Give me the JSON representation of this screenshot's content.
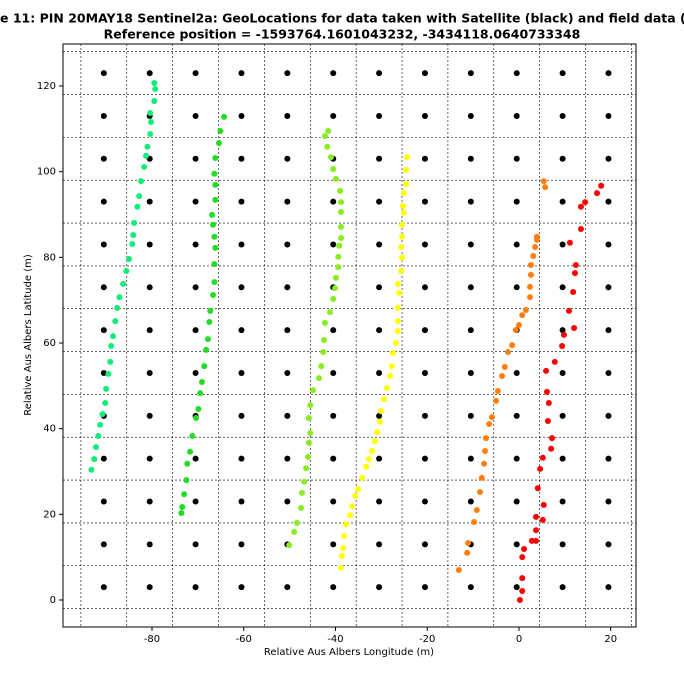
{
  "chart_data": {
    "type": "scatter",
    "title": "e 11: PIN 20MAY18  Sentinel2a: GeoLocations for data taken with Satellite (black) and field data (colo",
    "subtitle": "Reference position = -1593764.1601043232, -3434118.0640733348",
    "xlabel": "Relative Aus Albers Longitude (m)",
    "ylabel": "Relative Aus Albers Latitude (m)",
    "xlim": [
      -99.4,
      25.5
    ],
    "ylim": [
      -6.3,
      129.8
    ],
    "xticks": [
      -80,
      -60,
      -40,
      -20,
      0,
      20
    ],
    "yticks": [
      0,
      20,
      40,
      60,
      80,
      100,
      120
    ],
    "xgrid": [
      -95.5,
      -85.5,
      -75.5,
      -65.5,
      -55.5,
      -45.5,
      -35.5,
      -25.5,
      -15.5,
      -5.5,
      4.5,
      14.5,
      24.5
    ],
    "ygrid": [
      -2,
      8,
      18,
      28,
      38,
      48,
      58,
      68,
      78,
      88,
      98,
      108,
      118,
      128
    ],
    "grid": true,
    "series": [
      {
        "color": "#000000",
        "x": [
          -90.5,
          -80.5,
          -70.5,
          -60.5,
          -50.5,
          -40.5,
          -30.5,
          -20.5,
          -10.5,
          -0.5,
          9.5,
          19.5,
          -90.5,
          -80.5,
          -70.5,
          -60.5,
          -50.5,
          -40.5,
          -30.5,
          -20.5,
          -10.5,
          -0.5,
          9.5,
          19.5,
          -90.5,
          -80.5,
          -70.5,
          -60.5,
          -50.5,
          -40.5,
          -30.5,
          -20.5,
          -10.5,
          -0.5,
          9.5,
          19.5,
          -90.5,
          -80.5,
          -70.5,
          -60.5,
          -50.5,
          -40.5,
          -30.5,
          -20.5,
          -10.5,
          -0.5,
          9.5,
          19.5,
          -90.5,
          -80.5,
          -70.5,
          -60.5,
          -50.5,
          -40.5,
          -30.5,
          -20.5,
          -10.5,
          -0.5,
          9.5,
          19.5,
          -90.5,
          -80.5,
          -70.5,
          -60.5,
          -50.5,
          -40.5,
          -30.5,
          -20.5,
          -10.5,
          -0.5,
          9.5,
          19.5,
          -90.5,
          -80.5,
          -70.5,
          -60.5,
          -50.5,
          -40.5,
          -30.5,
          -20.5,
          -10.5,
          -0.5,
          9.5,
          19.5,
          -90.5,
          -80.5,
          -70.5,
          -60.5,
          -50.5,
          -40.5,
          -30.5,
          -20.5,
          -10.5,
          -0.5,
          9.5,
          19.5,
          -90.5,
          -80.5,
          -70.5,
          -60.5,
          -50.5,
          -40.5,
          -30.5,
          -20.5,
          -10.5,
          -0.5,
          9.5,
          19.5,
          -90.5,
          -80.5,
          -70.5,
          -60.5,
          -50.5,
          -40.5,
          -30.5,
          -20.5,
          -10.5,
          -0.5,
          9.5,
          19.5,
          -90.5,
          -80.5,
          -70.5,
          -60.5,
          -50.5,
          -40.5,
          -30.5,
          -20.5,
          -10.5,
          -0.5,
          9.5,
          19.5,
          -90.5,
          -80.5,
          -70.5,
          -60.5,
          -50.5,
          -40.5,
          -30.5,
          -20.5,
          -10.5,
          -0.5,
          9.5,
          19.5,
          -90.5,
          -80.5,
          -70.5,
          -60.5,
          -50.5,
          -40.5,
          -30.5,
          -20.5,
          -10.5,
          -0.5,
          9.5,
          19.5
        ],
        "y": [
          3,
          3,
          3,
          3,
          3,
          3,
          3,
          3,
          3,
          3,
          3,
          3,
          13,
          13,
          13,
          13,
          13,
          13,
          13,
          13,
          13,
          13,
          13,
          13,
          23,
          23,
          23,
          23,
          23,
          23,
          23,
          23,
          23,
          23,
          23,
          23,
          33,
          33,
          33,
          33,
          33,
          33,
          33,
          33,
          33,
          33,
          33,
          33,
          43,
          43,
          43,
          43,
          43,
          43,
          43,
          43,
          43,
          43,
          43,
          43,
          53,
          53,
          53,
          53,
          53,
          53,
          53,
          53,
          53,
          53,
          53,
          53,
          63,
          63,
          63,
          63,
          63,
          63,
          63,
          63,
          63,
          63,
          63,
          63,
          73,
          73,
          73,
          73,
          73,
          73,
          73,
          73,
          73,
          73,
          73,
          73,
          83,
          83,
          83,
          83,
          83,
          83,
          83,
          83,
          83,
          83,
          83,
          83,
          93,
          93,
          93,
          93,
          93,
          93,
          93,
          93,
          93,
          93,
          93,
          93,
          103,
          103,
          103,
          103,
          103,
          103,
          103,
          103,
          103,
          103,
          103,
          103,
          113,
          113,
          113,
          113,
          113,
          113,
          113,
          113,
          113,
          113,
          113,
          113,
          123,
          123,
          123,
          123,
          123,
          123,
          123,
          123,
          123,
          123,
          123,
          123
        ]
      },
      {
        "color": "#11ee77",
        "x": [
          -93.2,
          -92.6,
          -92.2,
          -91.7,
          -91.3,
          -90.8,
          -90.2,
          -90.0,
          -89.5,
          -89.1,
          -88.9,
          -88.5,
          -88.0,
          -87.6,
          -87.1,
          -86.3,
          -85.6,
          -85.0,
          -84.3,
          -84.1,
          -83.9,
          -83.2,
          -82.8,
          -82.4,
          -81.7,
          -81.3,
          -81.0,
          -80.4,
          -80.2,
          -80.4,
          -79.5,
          -79.3,
          -79.5
        ],
        "y": [
          30.4,
          32.9,
          35.7,
          38.3,
          40.9,
          43.4,
          46.0,
          49.3,
          52.8,
          55.6,
          59.3,
          61.6,
          65.1,
          68.2,
          70.7,
          73.8,
          76.8,
          79.6,
          83.1,
          85.2,
          88.0,
          91.8,
          94.3,
          97.8,
          101.1,
          103.7,
          105.8,
          108.8,
          111.6,
          113.7,
          116.5,
          119.3,
          120.7
        ]
      },
      {
        "color": "#22dd22",
        "x": [
          -73.6,
          -73.4,
          -73.0,
          -72.5,
          -72.3,
          -71.7,
          -71.2,
          -70.4,
          -69.9,
          -69.5,
          -69.1,
          -68.6,
          -68.2,
          -67.8,
          -67.5,
          -67.3,
          -66.7,
          -66.4,
          -66.4,
          -66.2,
          -66.4,
          -66.7,
          -66.9,
          -66.2,
          -66.2,
          -66.4,
          -66.2,
          -65.4,
          -65.1,
          -64.3
        ],
        "y": [
          20.3,
          21.7,
          24.7,
          28.0,
          31.8,
          34.6,
          38.3,
          42.5,
          44.6,
          48.3,
          50.9,
          54.6,
          58.4,
          60.9,
          64.9,
          67.5,
          71.2,
          74.2,
          78.4,
          82.2,
          84.8,
          87.6,
          89.9,
          93.4,
          96.9,
          99.5,
          103.2,
          106.7,
          109.5,
          112.8
        ]
      },
      {
        "color": "#88ee22",
        "x": [
          -50.1,
          -49.0,
          -48.4,
          -47.5,
          -47.3,
          -46.8,
          -46.4,
          -46.0,
          -45.8,
          -45.5,
          -45.8,
          -45.5,
          -44.9,
          -43.6,
          -43.1,
          -42.7,
          -42.5,
          -42.3,
          -41.2,
          -40.5,
          -40.1,
          -39.9,
          -39.4,
          -39.4,
          -39.2,
          -38.8,
          -38.8,
          -38.8,
          -38.8,
          -39.0,
          -39.9,
          -40.5,
          -41.0,
          -41.8,
          -42.3,
          -41.6
        ],
        "y": [
          12.8,
          15.9,
          18.0,
          21.5,
          25.0,
          27.6,
          30.8,
          33.4,
          36.7,
          39.0,
          42.5,
          45.5,
          49.0,
          51.8,
          54.6,
          57.9,
          60.7,
          64.7,
          67.2,
          70.3,
          72.8,
          75.2,
          77.7,
          80.1,
          82.7,
          84.5,
          87.1,
          90.6,
          92.9,
          95.5,
          98.3,
          100.6,
          103.4,
          105.8,
          108.3,
          109.5
        ]
      },
      {
        "color": "#ffff00",
        "x": [
          -38.8,
          -38.6,
          -38.3,
          -38.1,
          -37.7,
          -36.8,
          -36.4,
          -35.7,
          -35.1,
          -34.2,
          -33.3,
          -32.7,
          -32.0,
          -31.4,
          -30.9,
          -30.3,
          -30.1,
          -29.4,
          -28.8,
          -28.1,
          -27.7,
          -27.5,
          -26.8,
          -26.4,
          -26.4,
          -26.4,
          -26.1,
          -26.4,
          -25.7,
          -25.5,
          -25.7,
          -25.5,
          -25.5,
          -25.1,
          -25.3,
          -25.1,
          -24.6,
          -24.6,
          -24.4
        ],
        "y": [
          7.5,
          10.3,
          12.1,
          14.9,
          17.7,
          19.8,
          21.9,
          24.3,
          25.9,
          28.5,
          31.1,
          32.9,
          34.8,
          37.1,
          39.2,
          41.6,
          44.1,
          46.9,
          49.5,
          52.3,
          54.6,
          57.7,
          60.0,
          62.8,
          65.1,
          68.2,
          71.7,
          73.8,
          76.8,
          79.9,
          82.4,
          84.8,
          87.6,
          90.4,
          92.0,
          95.0,
          97.1,
          100.4,
          103.4
        ]
      },
      {
        "color": "#ff7f0e",
        "x": [
          -13.1,
          -11.3,
          -11.1,
          -9.8,
          -9.2,
          -8.5,
          -8.1,
          -7.6,
          -7.4,
          -7.2,
          -6.5,
          -5.9,
          -5.0,
          -4.6,
          -3.7,
          -3.1,
          -2.4,
          -1.5,
          -0.7,
          0.0,
          0.7,
          1.5,
          2.4,
          2.4,
          2.6,
          2.6,
          3.1,
          3.5,
          3.9,
          3.9,
          5.7,
          5.4
        ],
        "y": [
          7.0,
          11.0,
          13.3,
          18.2,
          21.0,
          25.2,
          28.5,
          31.8,
          34.8,
          37.8,
          41.1,
          42.7,
          46.5,
          48.8,
          52.3,
          54.4,
          57.9,
          59.5,
          63.0,
          64.2,
          66.5,
          67.7,
          70.7,
          73.1,
          75.9,
          78.2,
          80.3,
          82.4,
          84.1,
          84.8,
          96.4,
          97.8
        ]
      },
      {
        "color": "#ff0000",
        "x": [
          0.2,
          0.7,
          0.7,
          0.7,
          1.1,
          2.8,
          3.7,
          3.7,
          3.7,
          5.2,
          5.4,
          4.1,
          4.6,
          5.2,
          7.0,
          7.2,
          6.3,
          6.5,
          6.1,
          5.9,
          7.8,
          9.4,
          9.8,
          12.0,
          10.9,
          11.8,
          12.2,
          12.4,
          11.1,
          13.5,
          13.5,
          14.4,
          17.0,
          17.9
        ],
        "y": [
          0.0,
          2.1,
          5.1,
          10.0,
          11.9,
          13.8,
          13.8,
          16.3,
          19.4,
          18.7,
          22.2,
          26.1,
          30.6,
          33.2,
          35.3,
          37.8,
          41.8,
          46.0,
          48.6,
          53.5,
          55.6,
          59.3,
          61.9,
          63.5,
          67.5,
          71.9,
          76.3,
          78.2,
          83.4,
          86.6,
          91.8,
          92.9,
          95.0,
          96.7
        ]
      }
    ]
  }
}
